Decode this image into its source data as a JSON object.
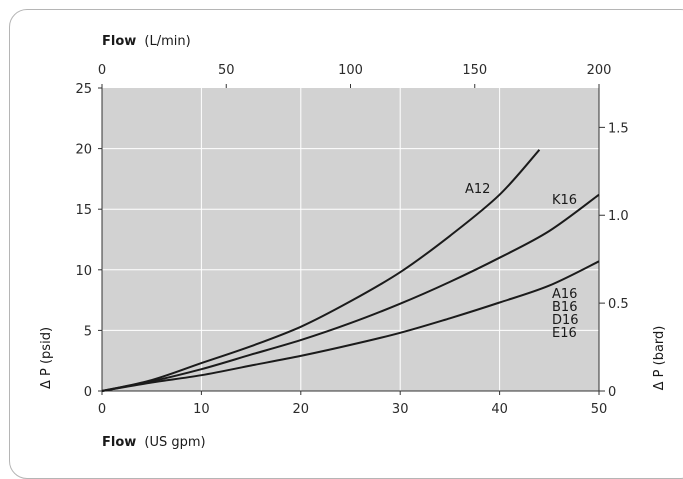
{
  "chart_data": {
    "type": "line",
    "x_bottom": {
      "label_bold": "Flow",
      "label_rest": "(US gpm)",
      "range": [
        0,
        50
      ],
      "ticks": [
        "0",
        "10",
        "20",
        "30",
        "40",
        "50"
      ]
    },
    "x_top": {
      "label_bold": "Flow",
      "label_rest": "(L/min)",
      "range": [
        0,
        200
      ],
      "ticks": [
        "0",
        "50",
        "100",
        "150",
        "200"
      ]
    },
    "y_left": {
      "label": "Δ P (psid)",
      "range": [
        0,
        25
      ],
      "ticks": [
        "0",
        "5",
        "10",
        "15",
        "20",
        "25"
      ]
    },
    "y_right": {
      "label": "Δ P (bard)",
      "range": [
        0,
        1.724
      ],
      "ticks": [
        "0",
        "0.5",
        "1.0",
        "1.5"
      ]
    },
    "grid": true,
    "series": [
      {
        "name": "A12",
        "x": [
          0,
          5,
          10,
          15,
          20,
          25,
          30,
          35,
          40,
          44
        ],
        "y": [
          0,
          0.9,
          2.3,
          3.7,
          5.3,
          7.4,
          9.8,
          12.8,
          16.2,
          19.9
        ]
      },
      {
        "name": "K16",
        "x": [
          0,
          5,
          10,
          15,
          20,
          25,
          30,
          35,
          40,
          45,
          50
        ],
        "y": [
          0,
          0.8,
          1.8,
          3.0,
          4.2,
          5.6,
          7.2,
          9.0,
          11.0,
          13.2,
          16.2
        ]
      },
      {
        "name": "A16 B16 D16 E16",
        "label_lines": [
          "A16",
          "B16",
          "D16",
          "E16"
        ],
        "x": [
          0,
          5,
          10,
          15,
          20,
          25,
          30,
          35,
          40,
          45,
          50
        ],
        "y": [
          0,
          0.7,
          1.3,
          2.1,
          2.9,
          3.8,
          4.8,
          6.0,
          7.3,
          8.7,
          10.7
        ]
      }
    ]
  }
}
